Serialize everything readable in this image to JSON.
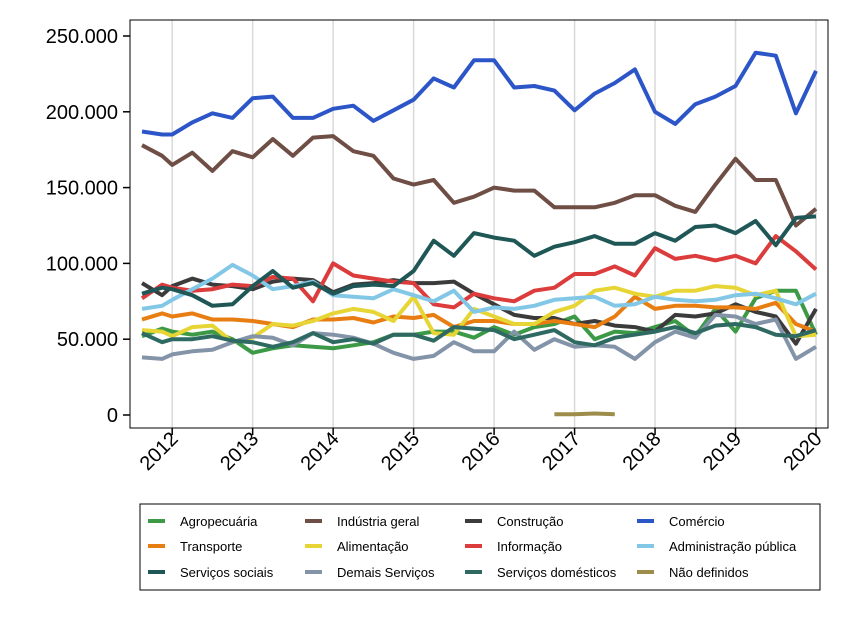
{
  "chart_data": {
    "type": "line",
    "title": "",
    "xlabel": "",
    "ylabel": "",
    "x": [
      2011.625,
      2011.875,
      2012.0,
      2012.25,
      2012.5,
      2012.75,
      2013.0,
      2013.25,
      2013.5,
      2013.75,
      2014.0,
      2014.25,
      2014.5,
      2014.75,
      2015.0,
      2015.25,
      2015.5,
      2015.75,
      2016.0,
      2016.25,
      2016.5,
      2016.75,
      2017.0,
      2017.25,
      2017.5,
      2017.75,
      2018.0,
      2018.25,
      2018.5,
      2018.75,
      2019.0,
      2019.25,
      2019.5,
      2019.75,
      2020.0
    ],
    "x_ticks": [
      2012,
      2013,
      2014,
      2015,
      2016,
      2017,
      2018,
      2019,
      2020
    ],
    "x_tick_labels": [
      "2012",
      "2013",
      "2014",
      "2015",
      "2016",
      "2017",
      "2018",
      "2019",
      "2020"
    ],
    "xlim": [
      2011.625,
      2020.0
    ],
    "ylim": [
      0,
      250000
    ],
    "y_ticks": [
      0,
      50000,
      100000,
      150000,
      200000,
      250000
    ],
    "y_tick_labels": [
      "0",
      "50.000",
      "100.000",
      "150.000",
      "200.000",
      "250.000"
    ],
    "grid": "vertical",
    "legend_position": "bottom",
    "series": [
      {
        "name": "Agropecuária",
        "color": "#3c9a46",
        "values": [
          52000,
          57000,
          55000,
          53000,
          55000,
          50000,
          41000,
          44000,
          46000,
          45000,
          44000,
          46000,
          48000,
          53000,
          53000,
          55000,
          55000,
          51000,
          58000,
          53000,
          58000,
          60000,
          65000,
          50000,
          55000,
          54000,
          58000,
          62000,
          52000,
          70000,
          55000,
          77000,
          82000,
          82000,
          53000
        ]
      },
      {
        "name": "Indústria geral",
        "color": "#6e4e45",
        "values": [
          178000,
          171000,
          165000,
          173000,
          161000,
          174000,
          170000,
          182000,
          171000,
          183000,
          184000,
          174000,
          171000,
          156000,
          152000,
          155000,
          140000,
          144000,
          150000,
          148000,
          148000,
          137000,
          137000,
          137000,
          140000,
          145000,
          145000,
          138000,
          134000,
          152000,
          169000,
          155000,
          155000,
          125000,
          136000
        ]
      },
      {
        "name": "Construção",
        "color": "#3b3b3b",
        "values": [
          87000,
          79000,
          85000,
          90000,
          86000,
          85000,
          83000,
          88000,
          90000,
          89000,
          81000,
          86000,
          87000,
          89000,
          87000,
          87000,
          88000,
          80000,
          73000,
          66000,
          64000,
          64000,
          60000,
          62000,
          59000,
          58000,
          55000,
          66000,
          65000,
          67000,
          73000,
          68000,
          65000,
          47000,
          70000
        ]
      },
      {
        "name": "Comércio",
        "color": "#2c55c8",
        "values": [
          187000,
          185000,
          185000,
          193000,
          199000,
          196000,
          209000,
          210000,
          196000,
          196000,
          202000,
          204000,
          194000,
          201000,
          208000,
          222000,
          216000,
          234000,
          234000,
          216000,
          217000,
          214000,
          201000,
          212000,
          219000,
          228000,
          200000,
          192000,
          205000,
          210000,
          217000,
          239000,
          237000,
          199000,
          227000
        ]
      },
      {
        "name": "Transporte",
        "color": "#e87d12",
        "values": [
          63000,
          67000,
          65000,
          67000,
          63000,
          63000,
          62000,
          60000,
          58000,
          63000,
          63000,
          64000,
          61000,
          65000,
          64000,
          66000,
          58000,
          62000,
          62000,
          60000,
          60000,
          62000,
          60000,
          58000,
          65000,
          78000,
          70000,
          72000,
          72000,
          71000,
          71000,
          70000,
          74000,
          60000,
          55000
        ]
      },
      {
        "name": "Alimentação",
        "color": "#e6d534",
        "values": [
          56000,
          55000,
          52000,
          58000,
          59000,
          48000,
          51000,
          60000,
          59000,
          62000,
          67000,
          70000,
          68000,
          62000,
          78000,
          54000,
          53000,
          70000,
          65000,
          60000,
          60000,
          68000,
          72000,
          82000,
          84000,
          80000,
          78000,
          82000,
          82000,
          85000,
          84000,
          79000,
          82000,
          52000,
          53000
        ]
      },
      {
        "name": "Informação",
        "color": "#dc3c3c",
        "values": [
          77000,
          86000,
          84000,
          82000,
          83000,
          86000,
          85000,
          91000,
          90000,
          75000,
          100000,
          92000,
          90000,
          88000,
          87000,
          73000,
          71000,
          80000,
          77000,
          75000,
          82000,
          84000,
          93000,
          93000,
          98000,
          92000,
          110000,
          103000,
          105000,
          102000,
          105000,
          100000,
          118000,
          108000,
          96000
        ]
      },
      {
        "name": "Administração pública",
        "color": "#82c8e6",
        "values": [
          70000,
          72000,
          76000,
          83000,
          90000,
          99000,
          92000,
          83000,
          85000,
          88000,
          79000,
          78000,
          77000,
          83000,
          79000,
          75000,
          82000,
          68000,
          71000,
          70000,
          72000,
          76000,
          77000,
          78000,
          72000,
          73000,
          78000,
          76000,
          75000,
          76000,
          79000,
          80000,
          77000,
          73000,
          80000
        ]
      },
      {
        "name": "Serviços sociais",
        "color": "#1f5656",
        "values": [
          80000,
          84000,
          83000,
          79000,
          72000,
          73000,
          85000,
          95000,
          84000,
          87000,
          80000,
          85000,
          86000,
          85000,
          95000,
          115000,
          105000,
          120000,
          117000,
          115000,
          105000,
          111000,
          114000,
          118000,
          113000,
          113000,
          120000,
          115000,
          124000,
          125000,
          120000,
          128000,
          112000,
          130000,
          131000
        ]
      },
      {
        "name": "Demais Serviços",
        "color": "#8494a8",
        "values": [
          38000,
          37000,
          40000,
          42000,
          43000,
          48000,
          52000,
          51000,
          46000,
          54000,
          53000,
          51000,
          47000,
          41000,
          37000,
          39000,
          48000,
          42000,
          42000,
          55000,
          43000,
          50000,
          45000,
          46000,
          45000,
          37000,
          48000,
          55000,
          51000,
          66000,
          65000,
          60000,
          63000,
          37000,
          45000
        ]
      },
      {
        "name": "Serviços domésticos",
        "color": "#2e6a62",
        "values": [
          54000,
          48000,
          50000,
          50000,
          52000,
          49000,
          48000,
          45000,
          48000,
          54000,
          48000,
          50000,
          47000,
          53000,
          53000,
          49000,
          58000,
          57000,
          56000,
          50000,
          53000,
          56000,
          48000,
          46000,
          51000,
          53000,
          55000,
          58000,
          54000,
          59000,
          60000,
          58000,
          53000,
          52000,
          56000
        ]
      },
      {
        "name": "Não definidos",
        "color": "#9e8c4a",
        "values": [
          null,
          null,
          null,
          null,
          null,
          null,
          null,
          null,
          null,
          null,
          null,
          null,
          null,
          null,
          null,
          null,
          null,
          null,
          null,
          null,
          null,
          500,
          500,
          1000,
          500,
          null,
          null,
          null,
          null,
          null,
          null,
          null,
          null,
          null,
          null
        ]
      }
    ]
  }
}
